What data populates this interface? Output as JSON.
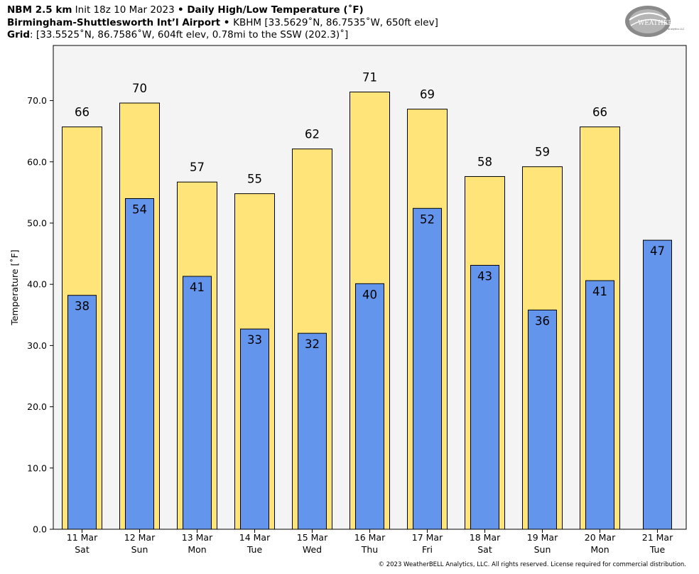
{
  "header": {
    "model": "NBM 2.5 km",
    "init": " Init 18z 10 Mar 2023 ",
    "bullet1": "•",
    "product": " Daily High/Low Temperature (˚F)",
    "station": "Birmingham-Shuttlesworth Int’l Airport",
    "bullet2": " • ",
    "station_detail": "KBHM [33.5629˚N, 86.7535˚W, 650ft elev]",
    "grid_label": "Grid",
    "grid_detail": ": [33.5525˚N, 86.7586˚W, 604ft elev, 0.78mi to the SSW (202.3)˚]"
  },
  "logo": {
    "text_weather": "WEATHER",
    "text_bell": "BELL",
    "sub": "Analytics LLC"
  },
  "copyright": "© 2023 WeatherBELL Analytics, LLC. All rights reserved. License required for commercial distribution.",
  "chart_data": {
    "type": "bar",
    "ylabel": "Temperature [˚F]",
    "ylim": [
      0,
      79
    ],
    "yticks": [
      "0.0",
      "10.0",
      "20.0",
      "30.0",
      "40.0",
      "50.0",
      "60.0",
      "70.0"
    ],
    "grid": false,
    "categories": [
      {
        "date": "11 Mar",
        "day": "Sat"
      },
      {
        "date": "12 Mar",
        "day": "Sun"
      },
      {
        "date": "13 Mar",
        "day": "Mon"
      },
      {
        "date": "14 Mar",
        "day": "Tue"
      },
      {
        "date": "15 Mar",
        "day": "Wed"
      },
      {
        "date": "16 Mar",
        "day": "Thu"
      },
      {
        "date": "17 Mar",
        "day": "Fri"
      },
      {
        "date": "18 Mar",
        "day": "Sat"
      },
      {
        "date": "19 Mar",
        "day": "Sun"
      },
      {
        "date": "20 Mar",
        "day": "Mon"
      },
      {
        "date": "21 Mar",
        "day": "Tue"
      }
    ],
    "series": [
      {
        "key": "high",
        "color": "#ffe47a",
        "values": [
          65.7,
          69.6,
          56.7,
          54.8,
          62.1,
          71.4,
          68.6,
          57.6,
          59.2,
          65.7,
          null
        ],
        "labels": [
          "66",
          "70",
          "57",
          "55",
          "62",
          "71",
          "69",
          "58",
          "59",
          "66",
          null
        ]
      },
      {
        "key": "low",
        "color": "#6495ed",
        "values": [
          38.2,
          54.0,
          41.3,
          32.7,
          32.0,
          40.1,
          52.4,
          43.1,
          35.8,
          40.6,
          47.2
        ],
        "labels": [
          "38",
          "54",
          "41",
          "33",
          "32",
          "40",
          "52",
          "43",
          "36",
          "41",
          "47"
        ]
      }
    ],
    "plot_bg": "#f4f4f4"
  }
}
